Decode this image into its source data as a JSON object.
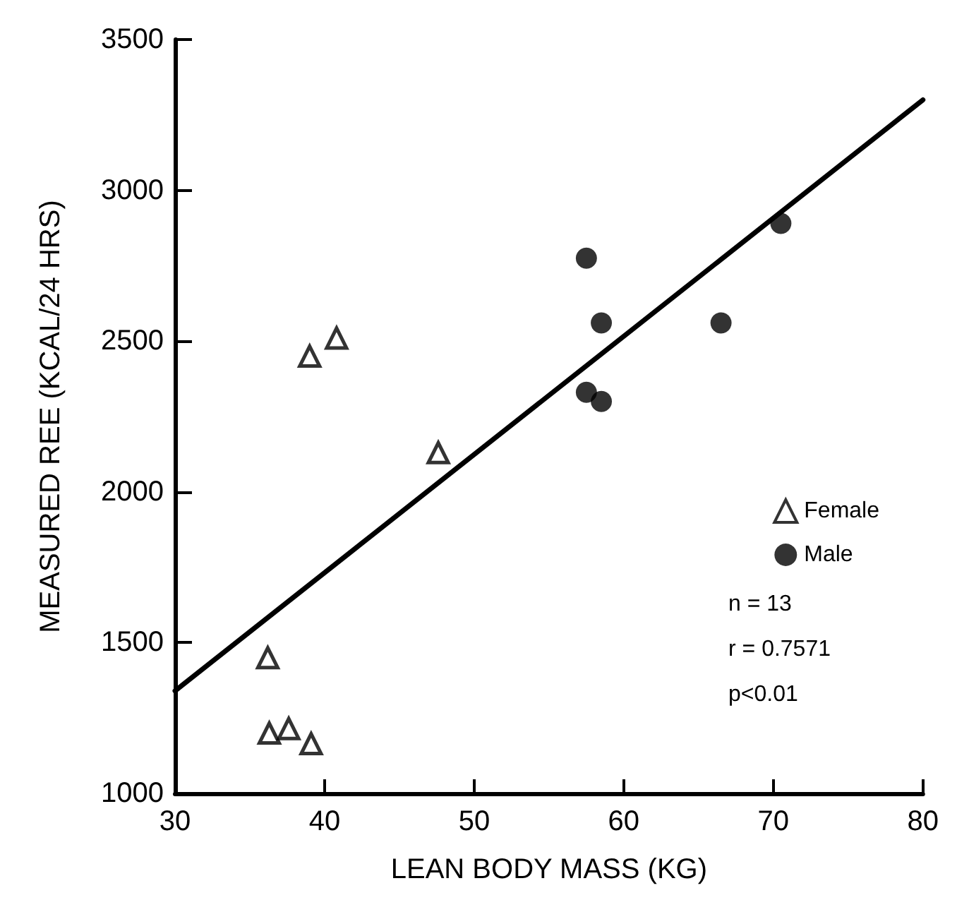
{
  "chart_data": {
    "type": "scatter",
    "xlabel": "LEAN BODY MASS (KG)",
    "ylabel": "MEASURED REE (KCAL/24 HRS)",
    "xlim": [
      30,
      80
    ],
    "xticks": [
      30,
      40,
      50,
      60,
      70,
      80
    ],
    "ylim": [
      1000,
      3500
    ],
    "yticks": [
      1000,
      1500,
      2000,
      2500,
      3000,
      3500
    ],
    "grid": false,
    "legend": "right",
    "series": [
      {
        "name": "Female",
        "marker": "triangle",
        "color": "#000000",
        "x": [
          36.2,
          36.3,
          37.6,
          39.1,
          39.0,
          40.8,
          47.6
        ],
        "values": [
          1450,
          1200,
          1215,
          1165,
          2450,
          2510,
          2130
        ]
      },
      {
        "name": "Male",
        "marker": "circle",
        "color": "#000000",
        "x": [
          57.5,
          58.5,
          57.5,
          58.5,
          66.5,
          70.5
        ],
        "values": [
          2775,
          2560,
          2330,
          2300,
          2560,
          2890
        ]
      },
      {
        "type": "line",
        "color": "#000000",
        "x": [
          30,
          80
        ],
        "values": [
          1340,
          3300
        ]
      }
    ],
    "annotations": [
      "n = 13",
      "r = 0.7571",
      "p<0.01"
    ]
  }
}
